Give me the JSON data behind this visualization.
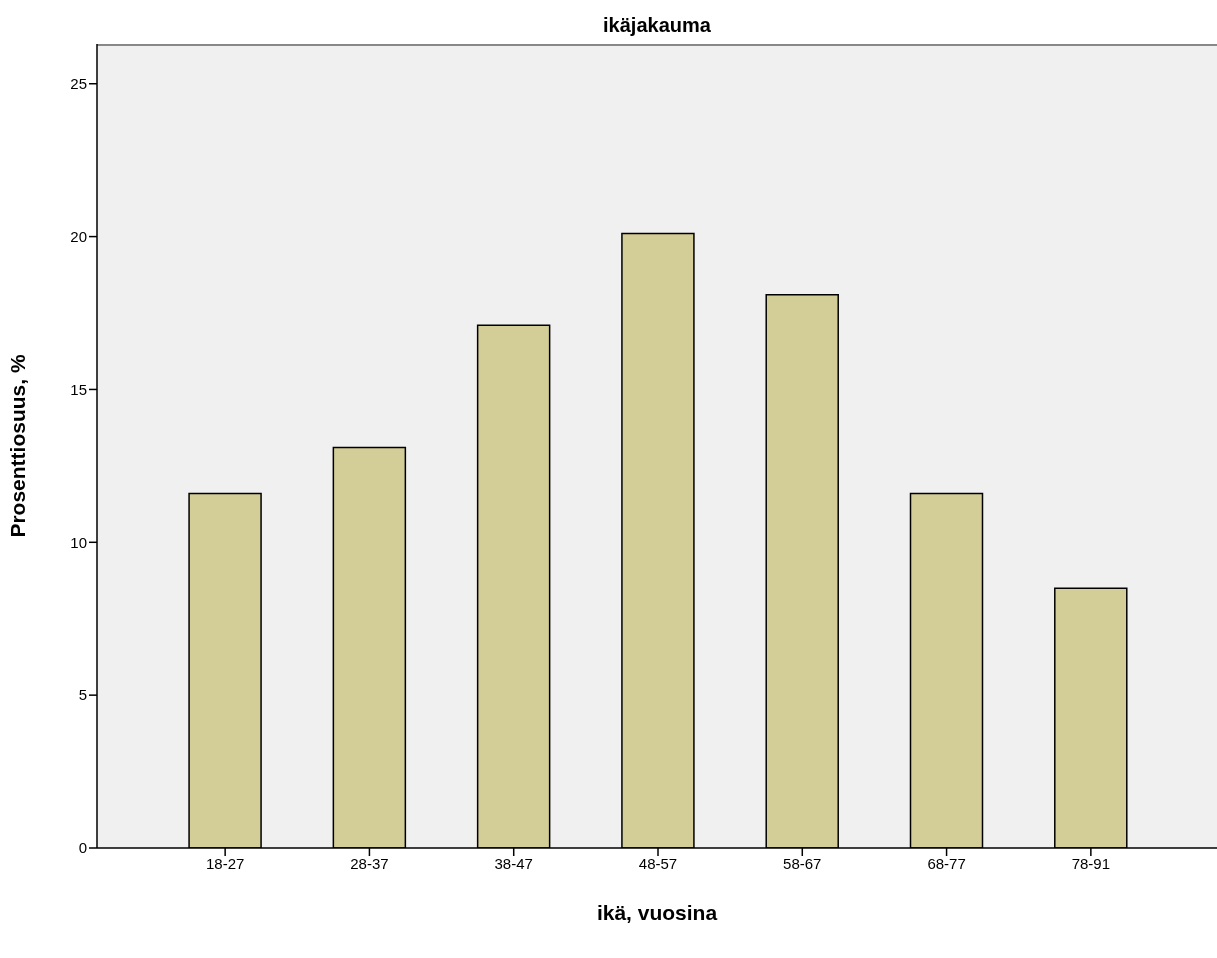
{
  "chart_data": {
    "type": "bar",
    "title": "ikäjakauma",
    "xlabel": "ikä, vuosina",
    "ylabel": "Prosenttiosuus, %",
    "categories": [
      "18-27",
      "28-37",
      "38-47",
      "48-57",
      "58-67",
      "68-77",
      "78-91"
    ],
    "values": [
      11.6,
      13.1,
      17.1,
      20.1,
      18.1,
      11.6,
      8.5
    ],
    "color": "#d3cd97",
    "ylim": [
      0,
      26.3
    ],
    "yticks": [
      0,
      5,
      10,
      15,
      20,
      25
    ],
    "grid": false,
    "legend": false
  }
}
